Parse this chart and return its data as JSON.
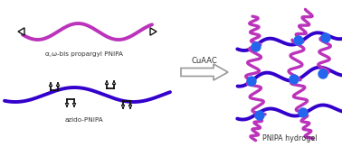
{
  "background_color": "#ffffff",
  "magenta_color": "#BB33BB",
  "blue_color": "#3300CC",
  "node_color": "#2266EE",
  "black_color": "#111111",
  "text_color": "#333333",
  "label_top": "α,ω-bis propargyl PNIPA",
  "label_bottom": "azido-PNIPA",
  "label_right": "PNIPA hydrogel",
  "label_cuaac": "CuAAC"
}
